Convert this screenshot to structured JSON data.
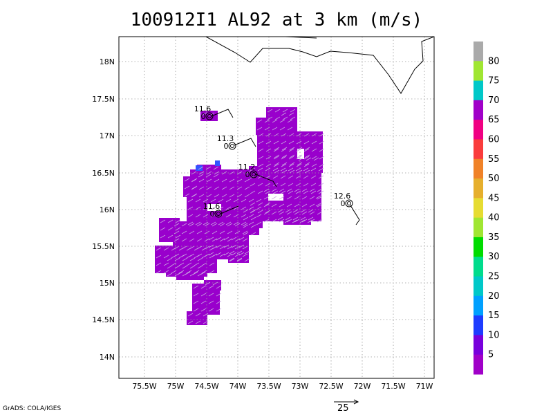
{
  "title": "100912I1 AL92 at 3 km (m/s)",
  "credit": "GrADS: COLA/IGES",
  "ref_vector_label": "25",
  "lat_labels": [
    "18N",
    "17.5N",
    "17N",
    "16.5N",
    "16N",
    "15.5N",
    "15N",
    "14.5N",
    "14N"
  ],
  "lon_labels": [
    "75.5W",
    "75W",
    "74.5W",
    "74W",
    "73.5W",
    "73W",
    "72.5W",
    "72W",
    "71.5W",
    "71W"
  ],
  "colorbar": {
    "labels": [
      "5",
      "10",
      "15",
      "20",
      "25",
      "30",
      "35",
      "40",
      "45",
      "50",
      "55",
      "60",
      "65",
      "70",
      "75",
      "80"
    ],
    "colors": [
      "#a000c8",
      "#7800dc",
      "#1e3cff",
      "#00a0ff",
      "#00c8c8",
      "#00dc8c",
      "#00dc00",
      "#a0e632",
      "#e6dc32",
      "#e6af2d",
      "#f08228",
      "#fa3c3c",
      "#f00082",
      "#a000c8",
      "#00c8c8",
      "#a0e632",
      "#aaaaaa"
    ]
  },
  "centers": [
    {
      "label": "11.6",
      "marker": "0"
    },
    {
      "label": "11.3",
      "marker": "0"
    },
    {
      "label": "11.2",
      "marker": "0"
    },
    {
      "label": "11.6",
      "marker": "0"
    },
    {
      "label": "12.6",
      "marker": "0"
    }
  ],
  "wind_field_color": "#9900cc",
  "patch_colors": {
    "blue": "#3355ff"
  }
}
